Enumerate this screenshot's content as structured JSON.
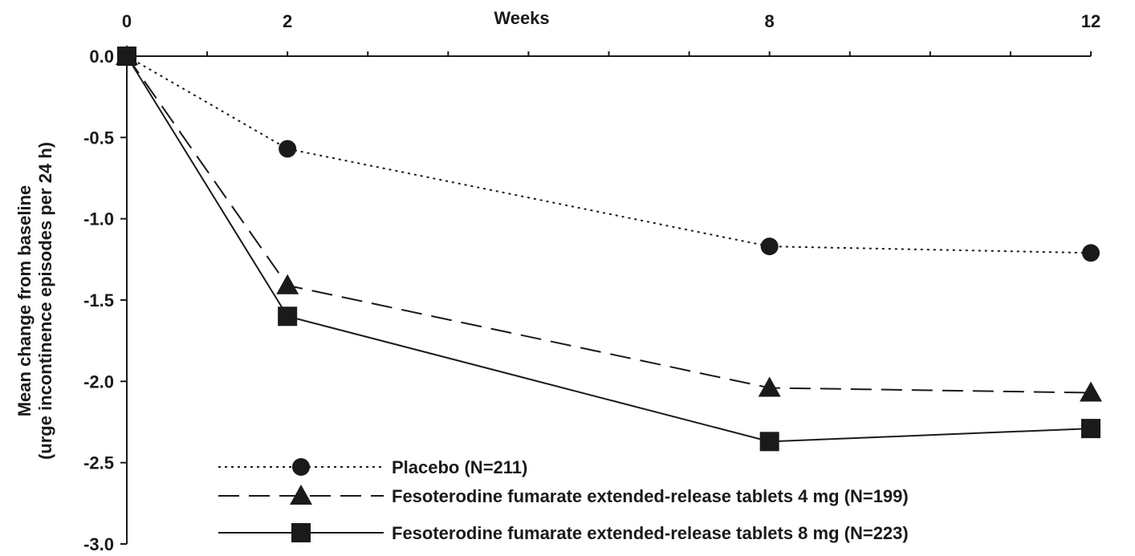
{
  "chart_data": {
    "type": "line",
    "xlabel": "Weeks",
    "ylabel_line1": "Mean change from baseline",
    "ylabel_line2": "(urge incontinence episodes per 24 h)",
    "x_ticks": [
      0,
      2,
      8,
      12
    ],
    "x_tick_labels": [
      "0",
      "2",
      "8",
      "12"
    ],
    "xlim": [
      0,
      12
    ],
    "y_ticks": [
      0.0,
      -0.5,
      -1.0,
      -1.5,
      -2.0,
      -2.5,
      -3.0
    ],
    "y_tick_labels": [
      "0.0",
      "-0.5",
      "-1.0",
      "-1.5",
      "-2.0",
      "-2.5",
      "-3.0"
    ],
    "ylim": [
      -3.0,
      0.0
    ],
    "grid": false,
    "legend_position": "bottom",
    "x": [
      0,
      2,
      8,
      12
    ],
    "series": [
      {
        "name": "Placebo (N=211)",
        "values": [
          0.0,
          -0.57,
          -1.17,
          -1.21
        ],
        "marker": "circle",
        "dash": "dotted",
        "color": "#1a1a1a"
      },
      {
        "name": "Fesoterodine fumarate extended-release tablets 4 mg (N=199)",
        "values": [
          0.0,
          -1.41,
          -2.04,
          -2.07
        ],
        "marker": "triangle",
        "dash": "dashed",
        "color": "#1a1a1a"
      },
      {
        "name": "Fesoterodine fumarate extended-release tablets 8 mg (N=223)",
        "values": [
          0.0,
          -1.6,
          -2.37,
          -2.29
        ],
        "marker": "square",
        "dash": "solid",
        "color": "#1a1a1a"
      }
    ]
  }
}
